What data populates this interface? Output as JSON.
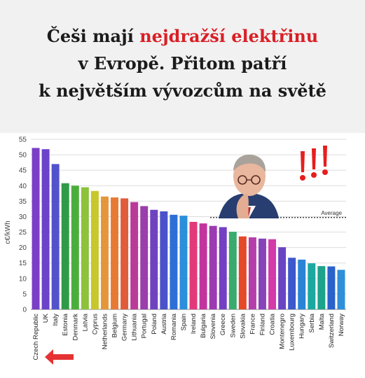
{
  "headline": {
    "part1": "Češi mají ",
    "highlight": "nejdražší elektřinu",
    "line2": "v Evropě. Přitom patří",
    "line3": "k největším vývozcům na světě"
  },
  "colors": {
    "headline_text": "#1b1b1b",
    "highlight": "#d91f26",
    "arrow": "#e63232",
    "exclamation": "#e61e1e"
  },
  "icons": {
    "alert": "triple-exclamation-icon",
    "pointer": "left-arrow-icon"
  },
  "chart_data": {
    "type": "bar",
    "ylabel": "c€/kWh",
    "ylim": [
      0,
      55
    ],
    "yticks": [
      0,
      5,
      10,
      15,
      20,
      25,
      30,
      35,
      40,
      45,
      50,
      55
    ],
    "grid": true,
    "average": {
      "label": "Average",
      "value": 29.7
    },
    "categories": [
      "Czech Republic",
      "UK",
      "Italy",
      "Estonia",
      "Denmark",
      "Latvia",
      "Cyprus",
      "Netherlands",
      "Belgium",
      "Germany",
      "Lithuania",
      "Portugal",
      "Poland",
      "Austria",
      "Romania",
      "Spain",
      "Ireland",
      "Bulgaria",
      "Slovenia",
      "Greece",
      "Sweden",
      "Slovakia",
      "France",
      "Finland",
      "Croatia",
      "Montenegro",
      "Luxembourg",
      "Hungary",
      "Serbia",
      "Malta",
      "Switzerland",
      "Norway"
    ],
    "values": [
      52.2,
      51.8,
      47.0,
      40.8,
      40.0,
      39.5,
      38.3,
      36.5,
      36.2,
      35.9,
      34.7,
      33.4,
      32.2,
      31.7,
      30.6,
      30.3,
      28.3,
      27.8,
      27.0,
      26.6,
      25.1,
      23.6,
      23.3,
      22.9,
      22.7,
      20.1,
      16.7,
      16.1,
      14.9,
      14.0,
      13.9,
      12.8
    ],
    "colors": [
      "#7b3ec6",
      "#6b42c9",
      "#5252cc",
      "#2f9b48",
      "#4bae3c",
      "#8cc33a",
      "#c8c72c",
      "#e6963a",
      "#e67a35",
      "#e05c3b",
      "#ba3a9a",
      "#9a3eab",
      "#6f42c0",
      "#4a52cb",
      "#2d6fd6",
      "#2b8fdc",
      "#e2397a",
      "#c2349d",
      "#9c3bb1",
      "#7340c3",
      "#3aab6e",
      "#e4492a",
      "#b43faa",
      "#8843bb",
      "#d33ba9",
      "#6a45c3",
      "#3d58cc",
      "#2b83d6",
      "#1ba8a0",
      "#1da28c",
      "#2a62cb",
      "#2f8fd9"
    ]
  }
}
